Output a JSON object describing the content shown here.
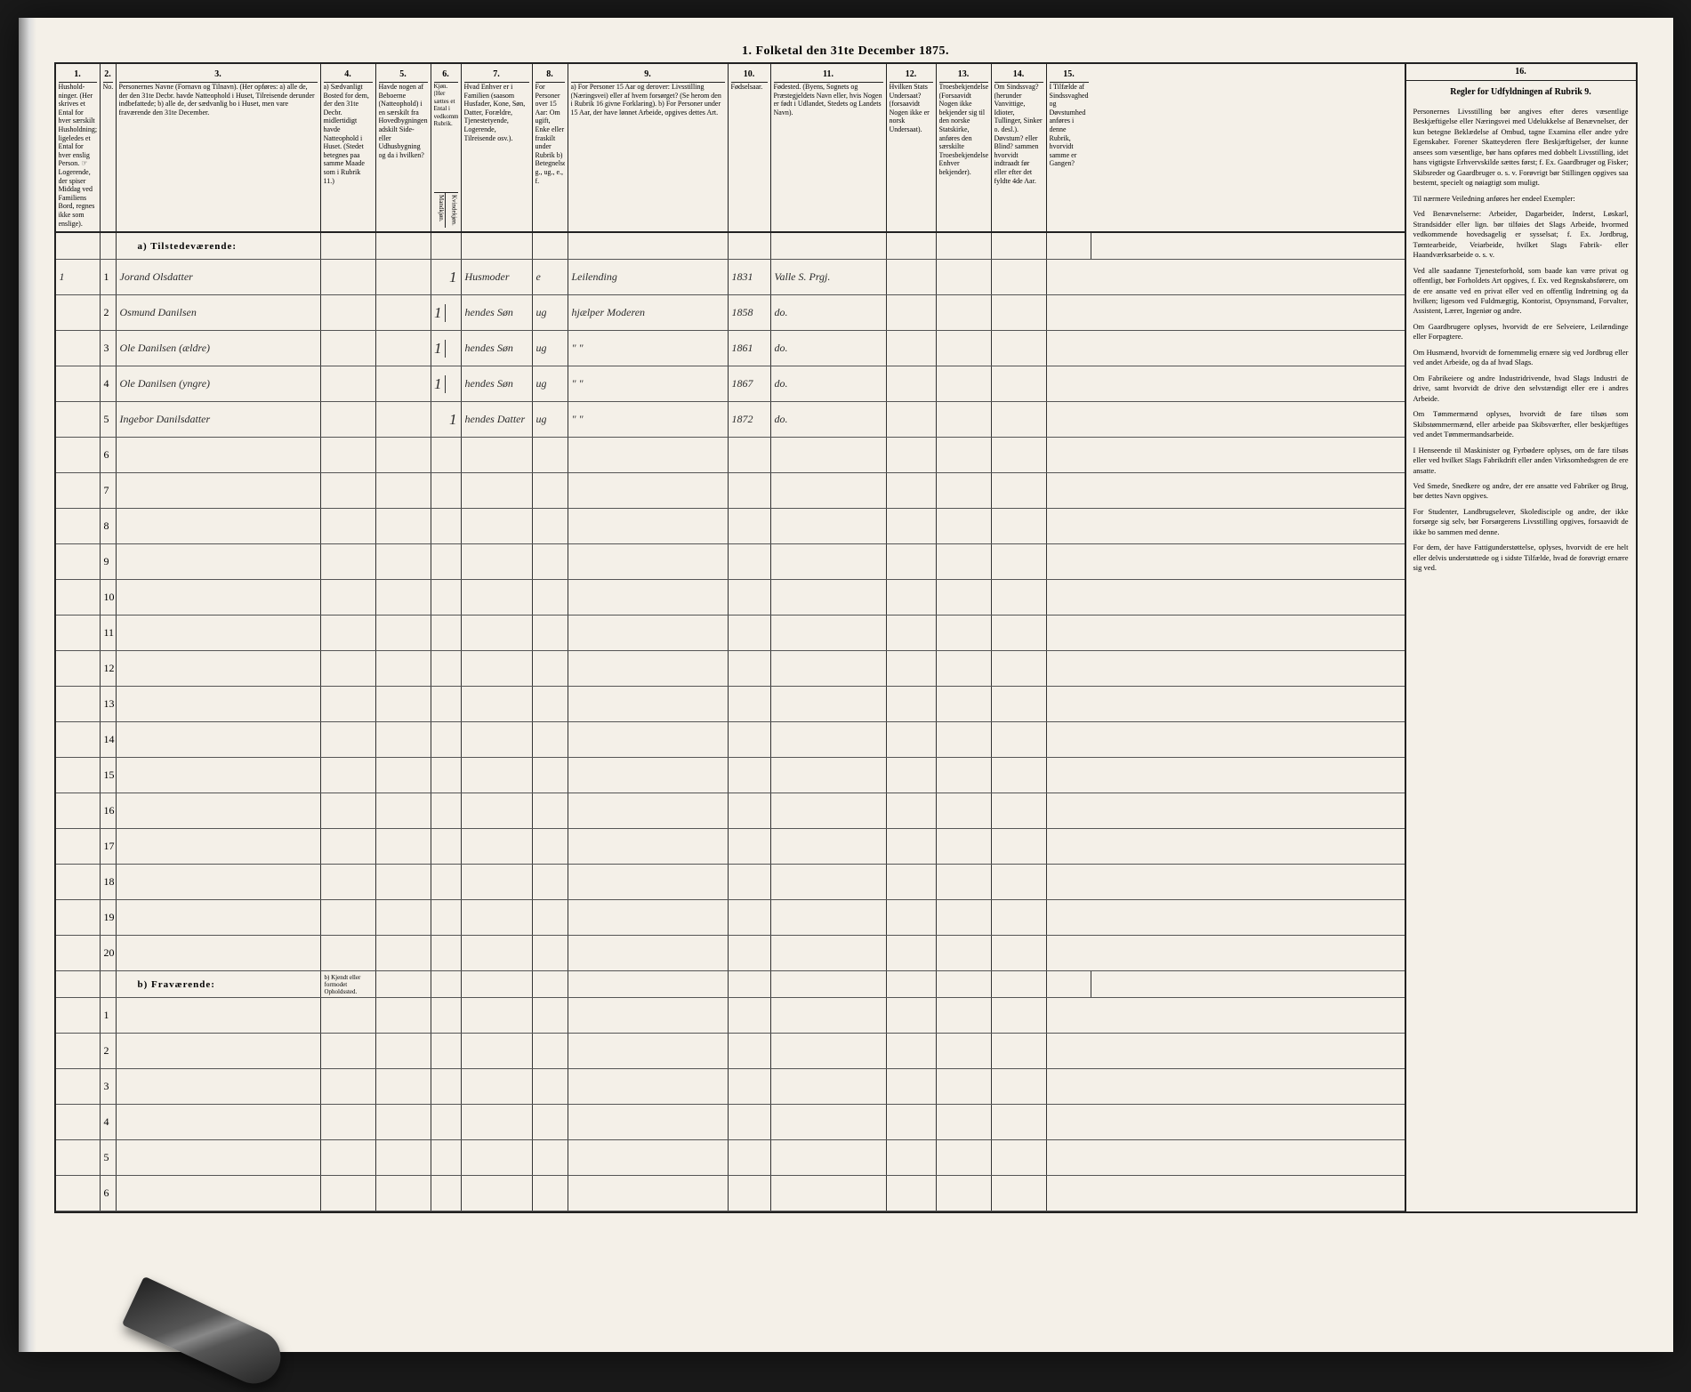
{
  "title": "1. Folketal den 31te December 1875.",
  "columns": {
    "c1": {
      "num": "1.",
      "label": "Hushold-\nninger.\n(Her skrives et Ental for hver\nsærskilt Husholdning; ligeledes et Ental for hver enslig Person.\n☞ Logerende, der spiser Middag ved Familiens Bord, regnes ikke som enslige)."
    },
    "c2": {
      "num": "2.",
      "label": "No."
    },
    "c3": {
      "num": "3.",
      "label": "Personernes Navne (Fornavn og Tilnavn).\n(Her opføres:\na) alle de, der den 31te Decbr. havde Natteophold i Huset, Tilreisende derunder indbefattede;\nb) alle de, der sædvanlig bo i Huset, men vare fraværende den 31te December."
    },
    "c4": {
      "num": "4.",
      "label": "a) Sædvanligt Bosted for dem, der den 31te Decbr. midlertidigt havde Natteophold i Huset. (Stedet betegnes paa samme Maade som i Rubrik 11.)"
    },
    "c5": {
      "num": "5.",
      "label": "Havde nogen af Beboerne (Natteophold) i en særskilt fra Hovedbygningen adskilt Side- eller Udhusbygning og da i hvilken?"
    },
    "c6": {
      "num": "6.",
      "label": "Kjøn. (Her sættes et Ental i vedkommende Rubrik.",
      "sub_a": "Mandkjøn.",
      "sub_b": "Kvindekjøn."
    },
    "c7": {
      "num": "7.",
      "label": "Hvad Enhver er i Familien (saasom Husfader, Kone, Søn, Datter, Forældre, Tjenestetyende, Logerende, Tilreisende osv.)."
    },
    "c8": {
      "num": "8.",
      "label": "For Personer over 15 Aar: Om ugift, Enke eller fraskilt under Rubrik b) Betegnelse g., ug., e., f."
    },
    "c9": {
      "num": "9.",
      "label": "a) For Personer 15 Aar og derover: Livsstilling (Næringsvei) eller af hvem forsørget? (Se herom den i Rubrik 16 givne Forklaring).\nb) For Personer under 15 Aar, der have lønnet Arbeide, opgives dettes Art."
    },
    "c10": {
      "num": "10.",
      "label": "Fødselsaar."
    },
    "c11": {
      "num": "11.",
      "label": "Fødested.\n(Byens, Sognets og Præstegjeldets Navn eller, hvis Nogen er født i Udlandet, Stedets og Landets Navn)."
    },
    "c12": {
      "num": "12.",
      "label": "Hvilken Stats Undersaat?\n(forsaavidt Nogen ikke er norsk Undersaat)."
    },
    "c13": {
      "num": "13.",
      "label": "Troesbekjendelse. (Forsaavidt Nogen ikke bekjender sig til den norske Statskirke, anføres den særskilte Troesbekjendelse Enhver bekjender)."
    },
    "c14": {
      "num": "14.",
      "label": "Om Sindssvag? (herunder Vanvittige, Idioter, Tullinger, Sinker o. desl.). Døvstum? eller Blind? sammen hvorvidt indtraadt før eller efter det fyldte 4de Aar."
    },
    "c15": {
      "num": "15.",
      "label": "I Tilfælde af Sindssvaghed og Døvstumhed anføres i denne Rubrik, hvorvidt samme er Gangen?"
    },
    "c16": {
      "num": "16.",
      "title": "Regler for Udfyldningen af Rubrik 9."
    }
  },
  "section_a": "a) Tilstedeværende:",
  "section_b": "b) Fraværende:",
  "section_b_extra": "b) Kjendt eller formodet Opholdssted.",
  "rows": [
    {
      "hh": "1",
      "no": "1",
      "name": "Jorand Olsdatter",
      "c5": "",
      "c6a": "",
      "c6b": "1",
      "fam": "Husmoder",
      "civ": "e",
      "occ": "Leilending",
      "year": "1831",
      "place": "Valle S. Prgj."
    },
    {
      "hh": "",
      "no": "2",
      "name": "Osmund Danilsen",
      "c5": "",
      "c6a": "1",
      "c6b": "",
      "fam": "hendes Søn",
      "civ": "ug",
      "occ": "hjælper Moderen",
      "year": "1858",
      "place": "do."
    },
    {
      "hh": "",
      "no": "3",
      "name": "Ole Danilsen (ældre)",
      "c5": "",
      "c6a": "1",
      "c6b": "",
      "fam": "hendes Søn",
      "civ": "ug",
      "occ": "\" \"",
      "year": "1861",
      "place": "do."
    },
    {
      "hh": "",
      "no": "4",
      "name": "Ole Danilsen (yngre)",
      "c5": "",
      "c6a": "1",
      "c6b": "",
      "fam": "hendes Søn",
      "civ": "ug",
      "occ": "\" \"",
      "year": "1867",
      "place": "do."
    },
    {
      "hh": "",
      "no": "5",
      "name": "Ingebor Danilsdatter",
      "c5": "",
      "c6a": "",
      "c6b": "1",
      "fam": "hendes Datter",
      "civ": "ug",
      "occ": "\" \"",
      "year": "1872",
      "place": "do."
    }
  ],
  "empty_rows_a": [
    "6",
    "7",
    "8",
    "9",
    "10",
    "11",
    "12",
    "13",
    "14",
    "15",
    "16",
    "17",
    "18",
    "19",
    "20"
  ],
  "empty_rows_b": [
    "1",
    "2",
    "3",
    "4",
    "5",
    "6"
  ],
  "rubrik16_text": [
    "Personernes Livsstilling bør angives efter deres væsentlige Beskjæftigelse eller Næringsvei med Udelukkelse af Benævnelser, der kun betegne Beklædelse af Ombud, tagne Examina eller andre ydre Egenskaber. Forener Skatteyderen flere Beskjæftigelser, der kunne ansees som væsentlige, bør hans opføres med dobbelt Livsstilling, idet hans vigtigste Erhvervskilde sættes først; f. Ex. Gaardbruger og Fisker; Skibsreder og Gaardbruger o. s. v. Forøvrigt bør Stillingen opgives saa bestemt, specielt og nøiagtigt som muligt.",
    "Til nærmere Veiledning anføres her endeel Exempler:",
    "Ved Benævnelserne: Arbeider, Dagarbeider, Inderst, Løskarl, Strandsidder eller lign. bør tilføies det Slags Arbeide, hvormed vedkommende hovedsagelig er sysselsat; f. Ex. Jordbrug, Tømtearbeide, Veiarbeide, hvilket Slags Fabrik- eller Haandværksarbeide o. s. v.",
    "Ved alle saadanne Tjenesteforhold, som baade kan være privat og offentligt, bør Forholdets Art opgives, f. Ex. ved Regnskabsførere, om de ere ansatte ved en privat eller ved en offentlig Indretning og da hvilken; ligesom ved Fuldmægtig, Kontorist, Opsynsmand, Forvalter, Assistent, Lærer, Ingeniør og andre.",
    "Om Gaardbrugere oplyses, hvorvidt de ere Selveiere, Leilændinge eller Forpagtere.",
    "Om Husmænd, hvorvidt de fornemmelig ernære sig ved Jordbrug eller ved andet Arbeide, og da af hvad Slags.",
    "Om Fabrikeiere og andre Industridrivende, hvad Slags Industri de drive, samt hvorvidt de drive den selvstændigt eller ere i andres Arbeide.",
    "Om Tømmermænd oplyses, hvorvidt de fare tilsøs som Skibstømmermænd, eller arbeide paa Skibsværfter, eller beskjæftiges ved andet Tømmermandsarbeide.",
    "I Henseende til Maskinister og Fyrbødere oplyses, om de fare tilsøs eller ved hvilket Slags Fabrikdrift eller anden Virksomhedsgren de ere ansatte.",
    "Ved Smede, Snedkere og andre, der ere ansatte ved Fabriker og Brug, bør dettes Navn opgives.",
    "For Studenter, Landbrugselever, Skoledisciple og andre, der ikke forsørge sig selv, bør Forsørgerens Livsstilling opgives, forsaavidt de ikke bo sammen med denne.",
    "For dem, der have Fattigunderstøttelse, oplyses, hvorvidt de ere helt eller delvis understøttede og i sidste Tilfælde, hvad de forøvrigt ernære sig ved."
  ]
}
